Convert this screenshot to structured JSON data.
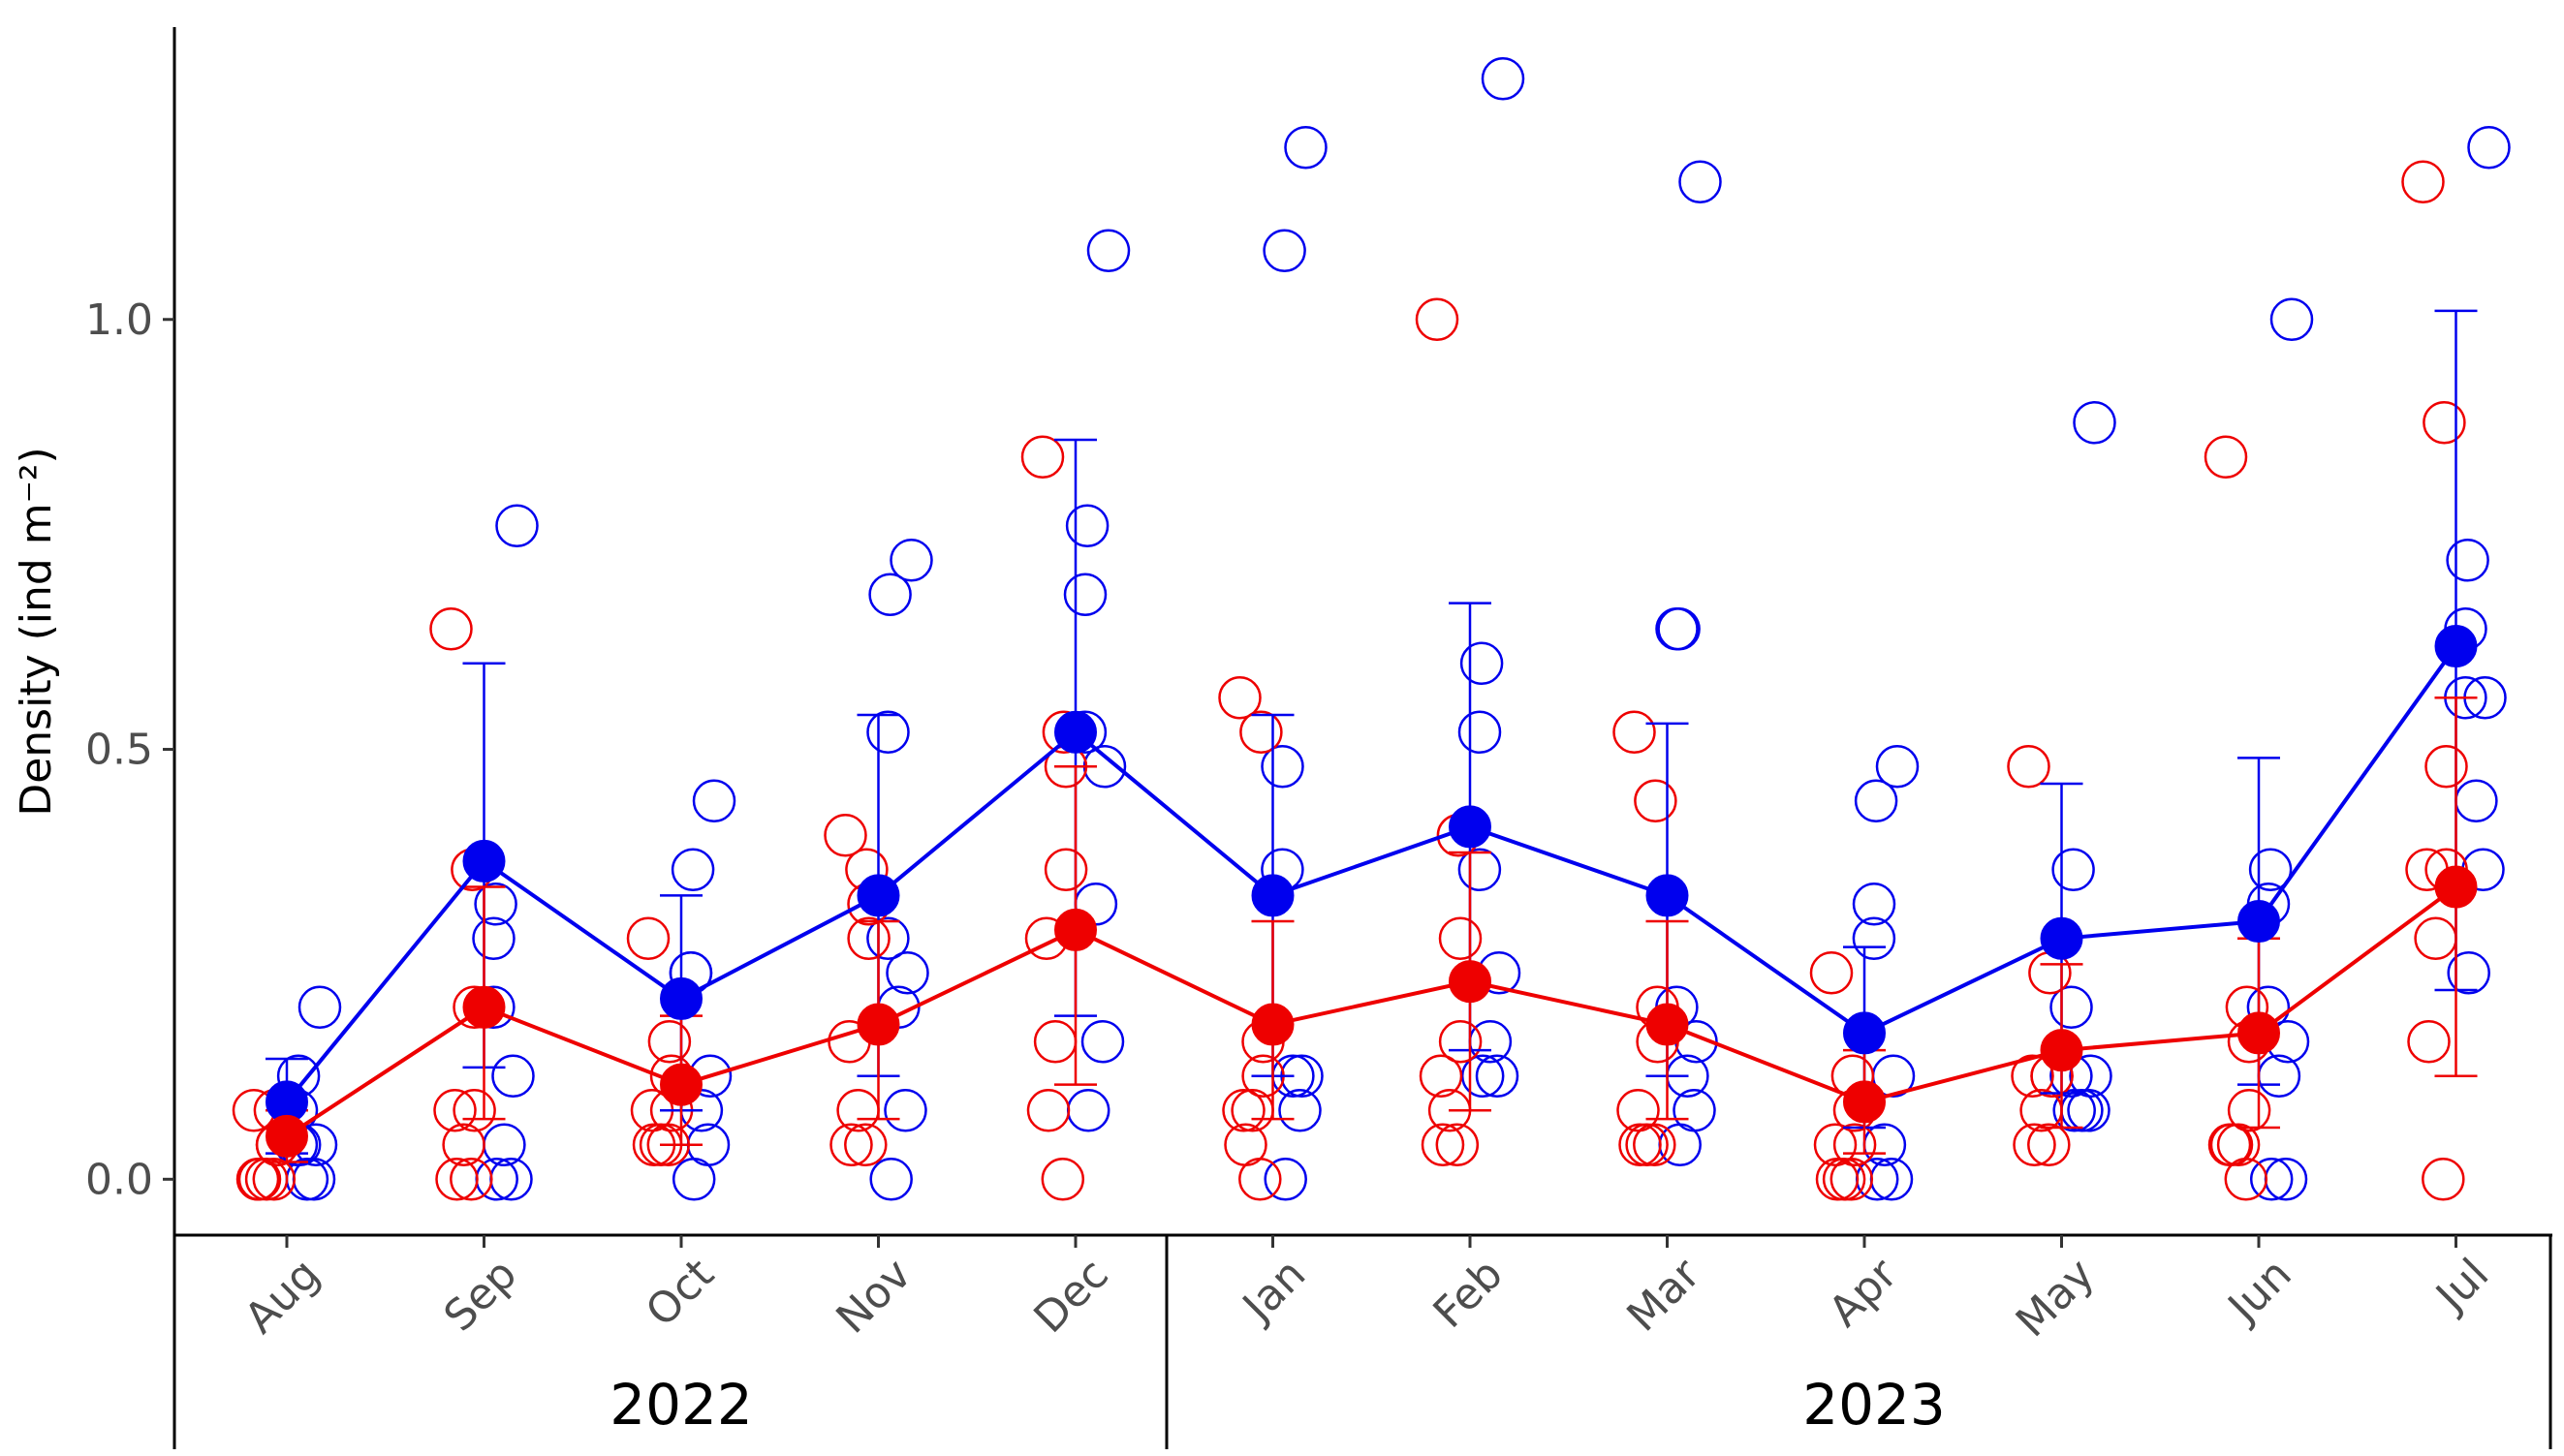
{
  "chart_data": {
    "type": "scatter",
    "title": "",
    "xlabel": "",
    "ylabel": "Density (ind m⁻²)",
    "ylim": [
      -0.065,
      1.34
    ],
    "yticks": [
      0.0,
      0.5,
      1.0
    ],
    "ytick_labels": [
      "0.0",
      "0.5",
      "1.0"
    ],
    "categories": [
      "Aug",
      "Sep",
      "Oct",
      "Nov",
      "Dec",
      "Jan",
      "Feb",
      "Mar",
      "Apr",
      "May",
      "Jun",
      "Jul"
    ],
    "year_groups": [
      {
        "label": "2022",
        "months": 5
      },
      {
        "label": "2023",
        "months": 7
      }
    ],
    "grid": false,
    "legend": "none",
    "series": [
      {
        "color": "#0000ee",
        "mean": [
          0.09,
          0.37,
          0.21,
          0.33,
          0.52,
          0.33,
          0.41,
          0.33,
          0.17,
          0.28,
          0.3,
          0.62
        ],
        "err_low": [
          0.03,
          0.13,
          0.08,
          0.12,
          0.19,
          0.12,
          0.15,
          0.12,
          0.06,
          0.1,
          0.11,
          0.22
        ],
        "err_high": [
          0.14,
          0.6,
          0.33,
          0.54,
          0.86,
          0.54,
          0.67,
          0.53,
          0.27,
          0.46,
          0.49,
          1.01
        ],
        "points": [
          [
            0.2,
            0.12,
            0.08,
            0.04,
            0.04,
            0.0,
            0.0,
            0.04
          ],
          [
            0.76,
            0.32,
            0.28,
            0.2,
            0.12,
            0.04,
            0.0,
            0.0
          ],
          [
            0.44,
            0.36,
            0.24,
            0.24,
            0.12,
            0.08,
            0.04,
            0.0
          ],
          [
            0.72,
            0.68,
            0.52,
            0.28,
            0.24,
            0.2,
            0.08,
            0.0
          ],
          [
            1.08,
            0.76,
            0.68,
            0.52,
            0.48,
            0.32,
            0.16,
            0.08
          ],
          [
            1.2,
            1.08,
            0.48,
            0.36,
            0.12,
            0.12,
            0.08,
            0.0
          ],
          [
            1.28,
            0.6,
            0.52,
            0.36,
            0.24,
            0.16,
            0.12,
            0.12
          ],
          [
            1.16,
            0.64,
            0.64,
            0.2,
            0.16,
            0.12,
            0.08,
            0.04
          ],
          [
            0.48,
            0.44,
            0.32,
            0.28,
            0.12,
            0.04,
            0.0,
            0.0
          ],
          [
            0.88,
            0.36,
            0.2,
            0.12,
            0.12,
            0.08,
            0.08,
            0.08
          ],
          [
            1.0,
            0.36,
            0.32,
            0.2,
            0.16,
            0.12,
            0.0,
            0.0
          ],
          [
            1.2,
            0.72,
            0.64,
            0.56,
            0.56,
            0.44,
            0.36,
            0.24
          ]
        ]
      },
      {
        "color": "#ee0000",
        "mean": [
          0.05,
          0.2,
          0.11,
          0.18,
          0.29,
          0.18,
          0.23,
          0.18,
          0.09,
          0.15,
          0.17,
          0.34
        ],
        "err_low": [
          0.02,
          0.07,
          0.04,
          0.07,
          0.11,
          0.07,
          0.08,
          0.07,
          0.03,
          0.06,
          0.06,
          0.12
        ],
        "err_high": [
          0.08,
          0.34,
          0.19,
          0.3,
          0.48,
          0.3,
          0.38,
          0.3,
          0.15,
          0.25,
          0.28,
          0.56
        ],
        "points": [
          [
            0.08,
            0.08,
            0.04,
            0.04,
            0.0,
            0.0,
            0.0,
            0.0
          ],
          [
            0.64,
            0.36,
            0.2,
            0.08,
            0.08,
            0.04,
            0.0,
            0.0
          ],
          [
            0.28,
            0.16,
            0.12,
            0.08,
            0.08,
            0.04,
            0.04,
            0.04
          ],
          [
            0.4,
            0.36,
            0.32,
            0.28,
            0.16,
            0.08,
            0.04,
            0.04
          ],
          [
            0.84,
            0.52,
            0.48,
            0.36,
            0.28,
            0.16,
            0.08,
            0.0
          ],
          [
            0.56,
            0.52,
            0.16,
            0.12,
            0.08,
            0.08,
            0.04,
            0.0
          ],
          [
            1.0,
            0.4,
            0.28,
            0.16,
            0.12,
            0.08,
            0.04,
            0.04
          ],
          [
            0.52,
            0.44,
            0.2,
            0.16,
            0.08,
            0.04,
            0.04,
            0.04
          ],
          [
            0.24,
            0.12,
            0.08,
            0.04,
            0.04,
            0.0,
            0.0,
            0.0
          ],
          [
            0.48,
            0.24,
            0.12,
            0.12,
            0.12,
            0.08,
            0.04,
            0.04
          ],
          [
            0.84,
            0.2,
            0.16,
            0.08,
            0.04,
            0.04,
            0.04,
            0.0
          ],
          [
            1.16,
            0.88,
            0.48,
            0.36,
            0.36,
            0.28,
            0.16,
            0.0
          ]
        ]
      }
    ]
  }
}
